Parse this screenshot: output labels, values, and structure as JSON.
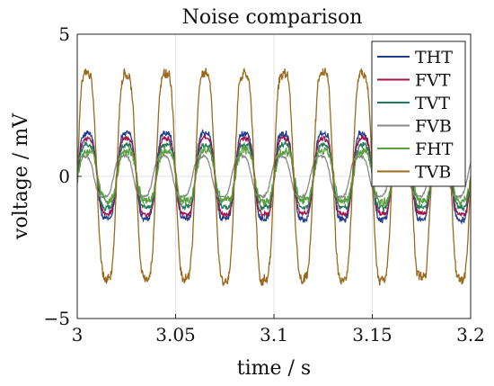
{
  "chart_data": {
    "type": "line",
    "title": "Noise comparison",
    "xlabel": "time / s",
    "ylabel": "voltage / mV",
    "xlim": [
      3.0,
      3.2
    ],
    "ylim": [
      -5,
      5
    ],
    "xticks": [
      3.0,
      3.05,
      3.1,
      3.15,
      3.2
    ],
    "xtick_labels": [
      "3",
      "3.05",
      "3.1",
      "3.15",
      "3.2"
    ],
    "yticks": [
      -5,
      0,
      5
    ],
    "ytick_labels": [
      "−5",
      "0",
      "5"
    ],
    "grid": true,
    "legend_position": "top-right",
    "signal_frequency_hz": 50,
    "series": [
      {
        "name": "THT",
        "color": "#1f3e8c",
        "amplitude": 1.7,
        "phase_shift_ms": 0.0,
        "noise": 0.15
      },
      {
        "name": "FVT",
        "color": "#a3154a",
        "amplitude": 1.5,
        "phase_shift_ms": 0.1,
        "noise": 0.12
      },
      {
        "name": "TVT",
        "color": "#1f7a5a",
        "amplitude": 1.25,
        "phase_shift_ms": 0.2,
        "noise": 0.12
      },
      {
        "name": "FVB",
        "color": "#8a8a8a",
        "amplitude": 0.8,
        "phase_shift_ms": -1.5,
        "noise": 0.06
      },
      {
        "name": "FHT",
        "color": "#5aa040",
        "amplitude": 1.0,
        "phase_shift_ms": 0.3,
        "noise": 0.22
      },
      {
        "name": "TVB",
        "color": "#9a6a1c",
        "amplitude": 4.1,
        "phase_shift_ms": 0.0,
        "noise": 0.25
      }
    ]
  }
}
